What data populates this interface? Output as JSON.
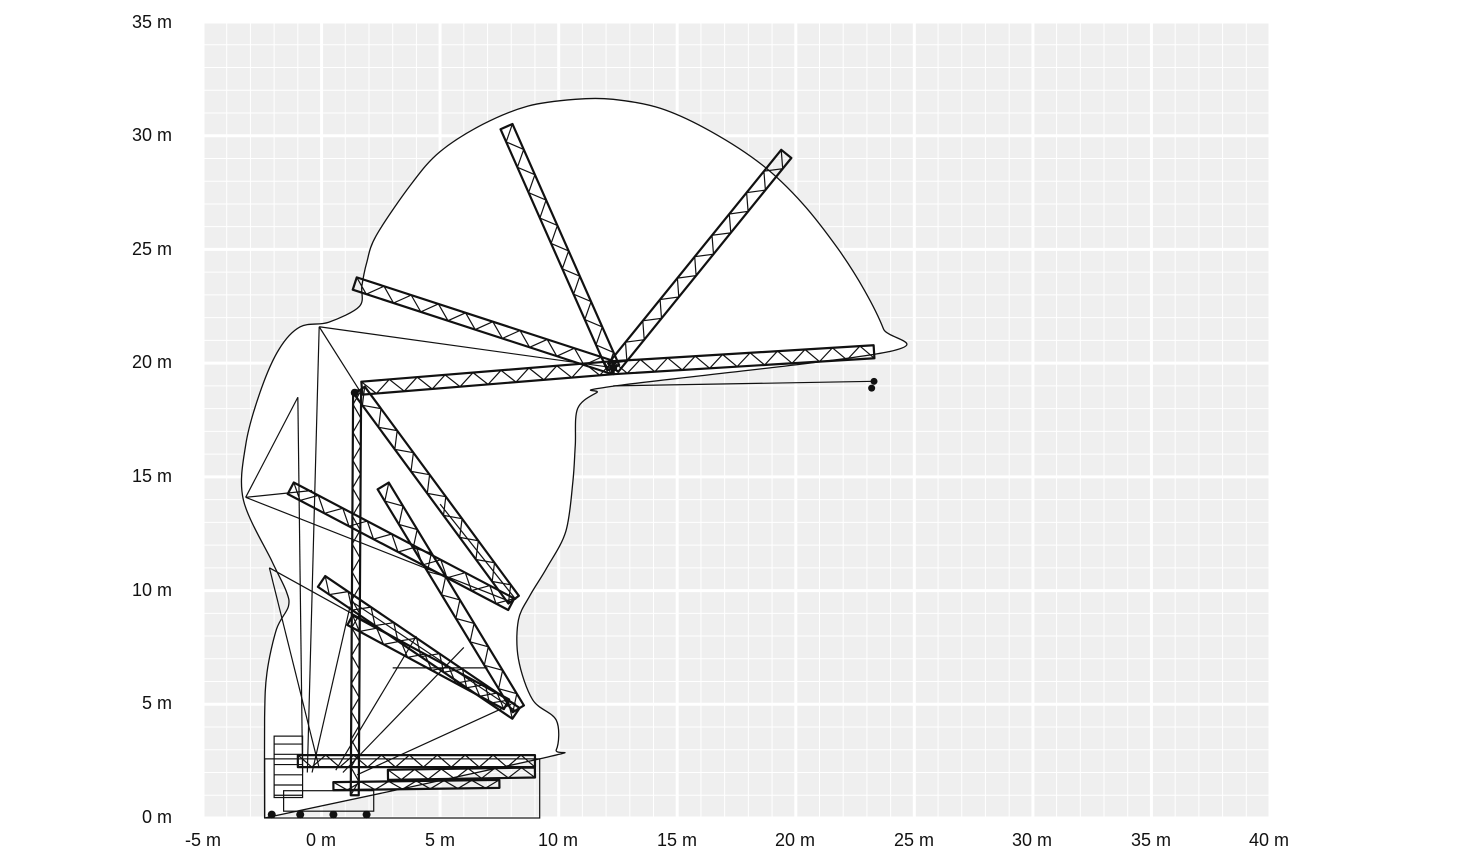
{
  "diagram": {
    "type": "crane-working-range",
    "x_unit": "m",
    "y_unit": "m",
    "x_range": [
      -5,
      40
    ],
    "y_range": [
      0,
      35
    ],
    "x_tick_labels": [
      "-5 m",
      "0 m",
      "5 m",
      "10 m",
      "15 m",
      "20 m",
      "25 m",
      "30 m",
      "35 m",
      "40 m"
    ],
    "y_tick_labels": [
      "0 m",
      "5 m",
      "10 m",
      "15 m",
      "20 m",
      "25 m",
      "30 m",
      "35 m"
    ],
    "grid": true,
    "colors": {
      "grid_bg": "#efefef",
      "grid_major": "#ffffff",
      "grid_minor": "#ffffff",
      "line": "#111111",
      "envelope_fill": "#ffffff"
    }
  },
  "chart_data": {
    "type": "line",
    "title": "",
    "xlabel": "",
    "ylabel": "",
    "xlim": [
      -5,
      40
    ],
    "ylim": [
      0,
      35
    ],
    "series": [
      {
        "x": [
          -2.4,
          -2.4,
          -2.3,
          -1.9,
          -1.4,
          -1.5,
          -2.1,
          -3.3,
          -3.2,
          -2.6,
          -1.8,
          -0.9,
          0.3,
          1.6,
          1.7,
          1.9,
          2.3,
          3.8,
          5.0,
          6.8,
          8.7,
          10.7,
          12.3,
          14.3,
          16.4,
          18.6,
          20.3,
          21.8,
          22.9,
          23.7,
          23.9,
          12.4,
          11.6,
          10.8,
          10.7,
          10.6,
          10.3,
          9.5,
          8.8,
          8.3,
          8.3,
          8.9,
          9.9,
          9.9,
          9.2,
          -2.4
        ],
        "y": [
          0.0,
          4.4,
          6.4,
          8.3,
          9.3,
          10.0,
          11.3,
          14.0,
          16.4,
          18.7,
          20.6,
          21.6,
          21.8,
          22.5,
          23.4,
          24.4,
          25.6,
          27.9,
          29.3,
          30.5,
          31.3,
          31.6,
          31.6,
          31.2,
          30.2,
          28.7,
          27.0,
          25.0,
          23.2,
          21.5,
          20.5,
          19.0,
          18.7,
          18.0,
          16.4,
          14.8,
          12.6,
          11.0,
          9.8,
          8.7,
          7.0,
          5.2,
          4.3,
          3.0,
          2.6,
          0.0
        ]
      }
    ]
  }
}
